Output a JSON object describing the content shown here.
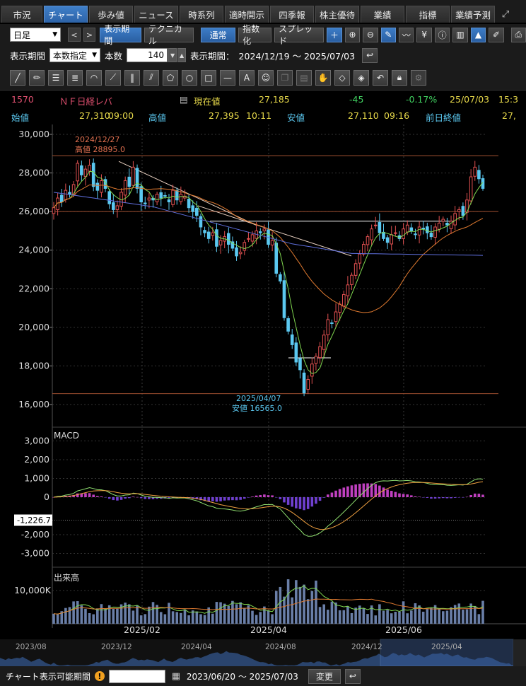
{
  "tabs": [
    {
      "label": "市況",
      "w": 58
    },
    {
      "label": "チャート",
      "w": 62,
      "active": true
    },
    {
      "label": "歩み値",
      "w": 62
    },
    {
      "label": "ニュース",
      "w": 62
    },
    {
      "label": "時系列",
      "w": 62
    },
    {
      "label": "適時開示",
      "w": 62
    },
    {
      "label": "四季報",
      "w": 62
    },
    {
      "label": "株主優待",
      "w": 62
    },
    {
      "label": "業績",
      "w": 62
    },
    {
      "label": "指標",
      "w": 62
    },
    {
      "label": "業績予測",
      "w": 62
    }
  ],
  "toolbar": {
    "period_select": "日足",
    "prev": "<",
    "next": ">",
    "display_period_btn": "表示期間",
    "technical_btn": "テクニカル",
    "normal_btn": "通常",
    "indexed_btn": "指数化",
    "spread_btn": "スプレッド"
  },
  "period_row": {
    "label": "表示期間",
    "mode": "本数指定",
    "count_label": "本数",
    "count": "140",
    "range_label": "表示期間：",
    "range": "2024/12/19 ～ 2025/07/03"
  },
  "quote": {
    "code": "1570",
    "name": "ＮＦ日経レバ",
    "current_label": "現在値",
    "current": "27,185",
    "change": "-45",
    "change_pct": "-0.17%",
    "date": "25/07/03",
    "time": "15:3",
    "open_label": "始値",
    "open": "27,310",
    "open_time": "09:00",
    "high_label": "高値",
    "high": "27,395",
    "high_time": "10:11",
    "low_label": "安値",
    "low": "27,110",
    "low_time": "09:16",
    "prev_close_label": "前日終値",
    "prev_close": "27,"
  },
  "colors": {
    "up": "#e05050",
    "down": "#5bc8f0",
    "ma_short": "#80d850",
    "ma_mid": "#e07a30",
    "ma_long": "#6070e0",
    "macd_line": "#90e070",
    "signal_line": "#f0a040",
    "hist_pos": "#c040c0",
    "hist_neg": "#7040d0",
    "volume": "#6a7fa8",
    "trend": "#e8d0c0",
    "hline": "#a05030",
    "support": "#ffffff"
  },
  "chart_data": {
    "type": "candlestick",
    "price_axis": {
      "ticks": [
        "30,000",
        "28,000",
        "26,000",
        "24,000",
        "22,000",
        "20,000",
        "18,000",
        "16,000"
      ],
      "range": [
        16000,
        30000
      ]
    },
    "macd_axis": {
      "ticks": [
        "3,000",
        "2,000",
        "1,000",
        "0",
        "-2,000",
        "-3,000"
      ],
      "range": [
        -3200,
        3200
      ],
      "marker": "-1,226.7"
    },
    "volume_axis": {
      "ticks": [
        "10,000K"
      ],
      "range": [
        0,
        14000
      ]
    },
    "x_labels": [
      "2025/02",
      "2025/04",
      "2025/06"
    ],
    "macd_title": "MACD",
    "volume_title": "出来高",
    "annotations": {
      "high_date": "2024/12/27",
      "high_text": "高値 28895.0",
      "low_date": "2025/04/07",
      "low_text": "安値 16565.0"
    },
    "horizontal_lines": [
      28895,
      26000,
      16565
    ],
    "support_lines": [
      {
        "y": 25500,
        "from": 80,
        "to": 540
      },
      {
        "y": 18420,
        "from": 408,
        "to": 468
      }
    ],
    "navigator_labels": [
      "2023/08",
      "2023/12",
      "2024/04",
      "2024/08",
      "2024/12",
      "2025/04"
    ],
    "closes": [
      26200,
      26700,
      26500,
      27100,
      26900,
      27400,
      28500,
      27900,
      28200,
      28400,
      27300,
      27100,
      27600,
      27200,
      26400,
      26100,
      26300,
      27000,
      27600,
      27300,
      28300,
      27200,
      26500,
      26400,
      26700,
      26600,
      26900,
      26700,
      26800,
      26500,
      27100,
      26600,
      26900,
      26800,
      26200,
      26000,
      25800,
      25200,
      24900,
      24600,
      24900,
      24200,
      24500,
      24700,
      24300,
      24100,
      23700,
      23900,
      24400,
      24600,
      24800,
      25000,
      24900,
      25100,
      24300,
      24500,
      22800,
      22400,
      20500,
      19800,
      19100,
      18200,
      17800,
      16600,
      17300,
      18100,
      18500,
      19000,
      19600,
      20400,
      20200,
      20800,
      21200,
      21700,
      22200,
      22700,
      23300,
      23800,
      24300,
      24700,
      25100,
      25300,
      24900,
      24600,
      24400,
      24800,
      24900,
      24600,
      25100,
      25300,
      25000,
      24800,
      25200,
      25100,
      24900,
      24700,
      25200,
      25400,
      25600,
      25300,
      25500,
      25900,
      26100,
      25800,
      26600,
      27800,
      28300,
      27700,
      27200
    ]
  }
}
